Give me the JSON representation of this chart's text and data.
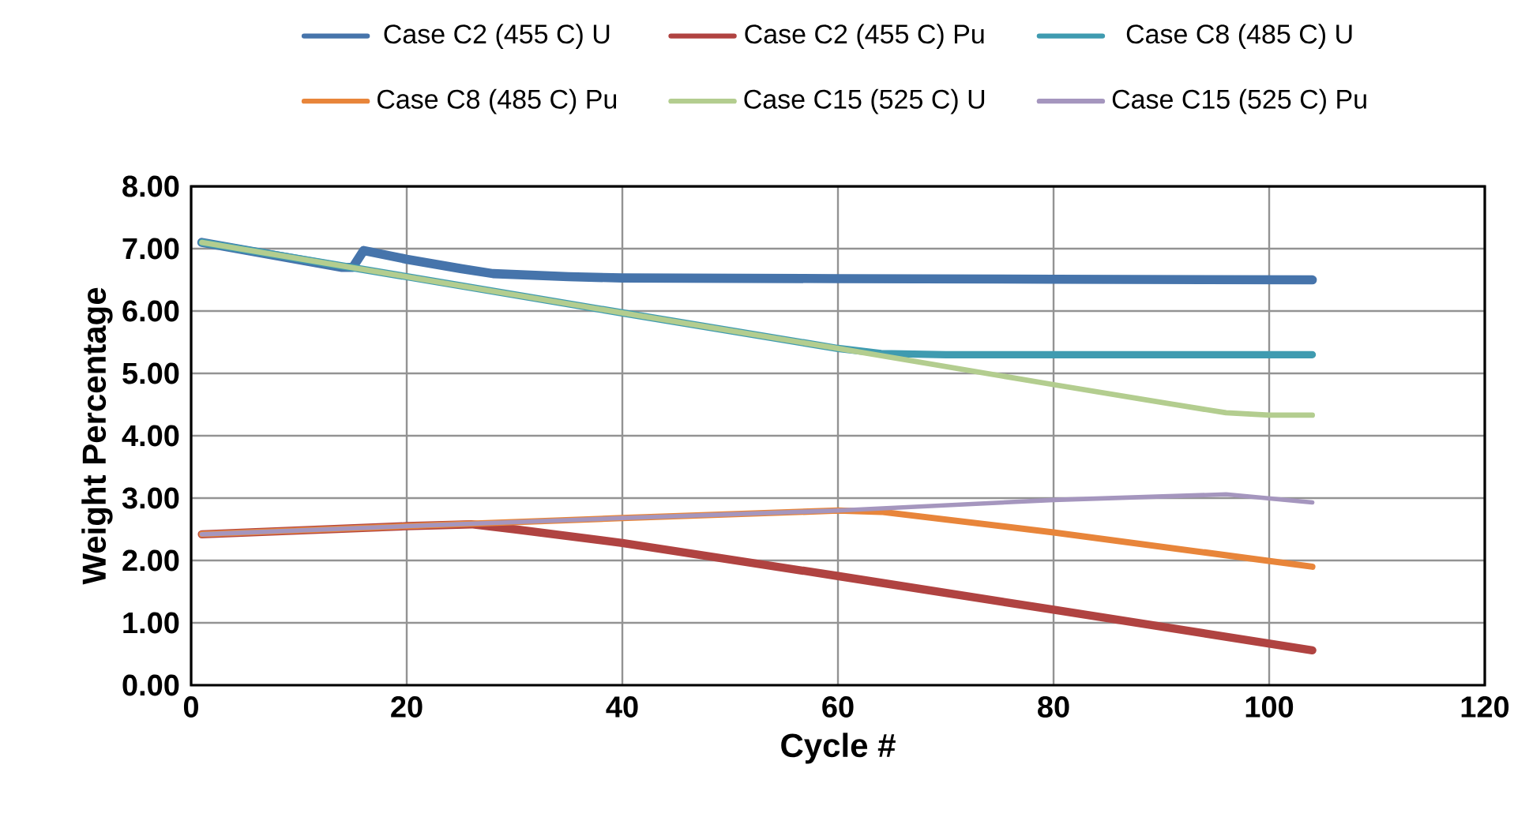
{
  "chart_data": {
    "type": "line",
    "xlabel": "Cycle #",
    "ylabel": "Weight Percentage",
    "xlim": [
      0,
      120
    ],
    "xticks": [
      0,
      20,
      40,
      60,
      80,
      100,
      120
    ],
    "ylim": [
      0,
      8
    ],
    "yticks": [
      {
        "value": 0,
        "label": "0.00"
      },
      {
        "value": 1,
        "label": "1.00"
      },
      {
        "value": 2,
        "label": "2.00"
      },
      {
        "value": 3,
        "label": "3.00"
      },
      {
        "value": 4,
        "label": "4.00"
      },
      {
        "value": 5,
        "label": "5.00"
      },
      {
        "value": 6,
        "label": "6.00"
      },
      {
        "value": 7,
        "label": "7.00"
      },
      {
        "value": 8,
        "label": "8.00"
      }
    ],
    "grid": true,
    "legend": "top",
    "marker": "none",
    "line_style": "solid",
    "series": [
      {
        "name": "Case C2 (455 C) U",
        "color": "#4674ab",
        "x": [
          1,
          14,
          15,
          16,
          20,
          25,
          28,
          35,
          40,
          60,
          80,
          104
        ],
        "values": [
          7.1,
          6.7,
          6.7,
          6.97,
          6.83,
          6.68,
          6.6,
          6.55,
          6.53,
          6.52,
          6.51,
          6.5
        ]
      },
      {
        "name": "Case C2 (455 C) Pu",
        "color": "#b04341",
        "x": [
          1,
          20,
          26,
          30,
          40,
          60,
          80,
          104
        ],
        "values": [
          2.42,
          2.55,
          2.58,
          2.5,
          2.28,
          1.75,
          1.21,
          0.56
        ]
      },
      {
        "name": "Case C8 (485 C) U",
        "color": "#3f9bb0",
        "x": [
          1,
          20,
          40,
          60,
          64,
          70,
          80,
          104
        ],
        "values": [
          7.1,
          6.55,
          5.97,
          5.4,
          5.32,
          5.3,
          5.3,
          5.3
        ]
      },
      {
        "name": "Case C8 (485 C) Pu",
        "color": "#e8853a",
        "x": [
          1,
          20,
          40,
          60,
          64,
          80,
          104
        ],
        "values": [
          2.42,
          2.55,
          2.68,
          2.8,
          2.78,
          2.45,
          1.9
        ]
      },
      {
        "name": "Case C15 (525 C) U",
        "color": "#b3cd8f",
        "x": [
          1,
          20,
          40,
          60,
          80,
          93,
          96,
          100,
          104
        ],
        "values": [
          7.1,
          6.55,
          5.97,
          5.4,
          4.82,
          4.45,
          4.37,
          4.33,
          4.33
        ]
      },
      {
        "name": "Case C15 (525 C) Pu",
        "color": "#a596be",
        "x": [
          1,
          20,
          40,
          60,
          80,
          96,
          104
        ],
        "values": [
          2.42,
          2.55,
          2.68,
          2.8,
          2.97,
          3.06,
          2.93
        ]
      }
    ]
  }
}
